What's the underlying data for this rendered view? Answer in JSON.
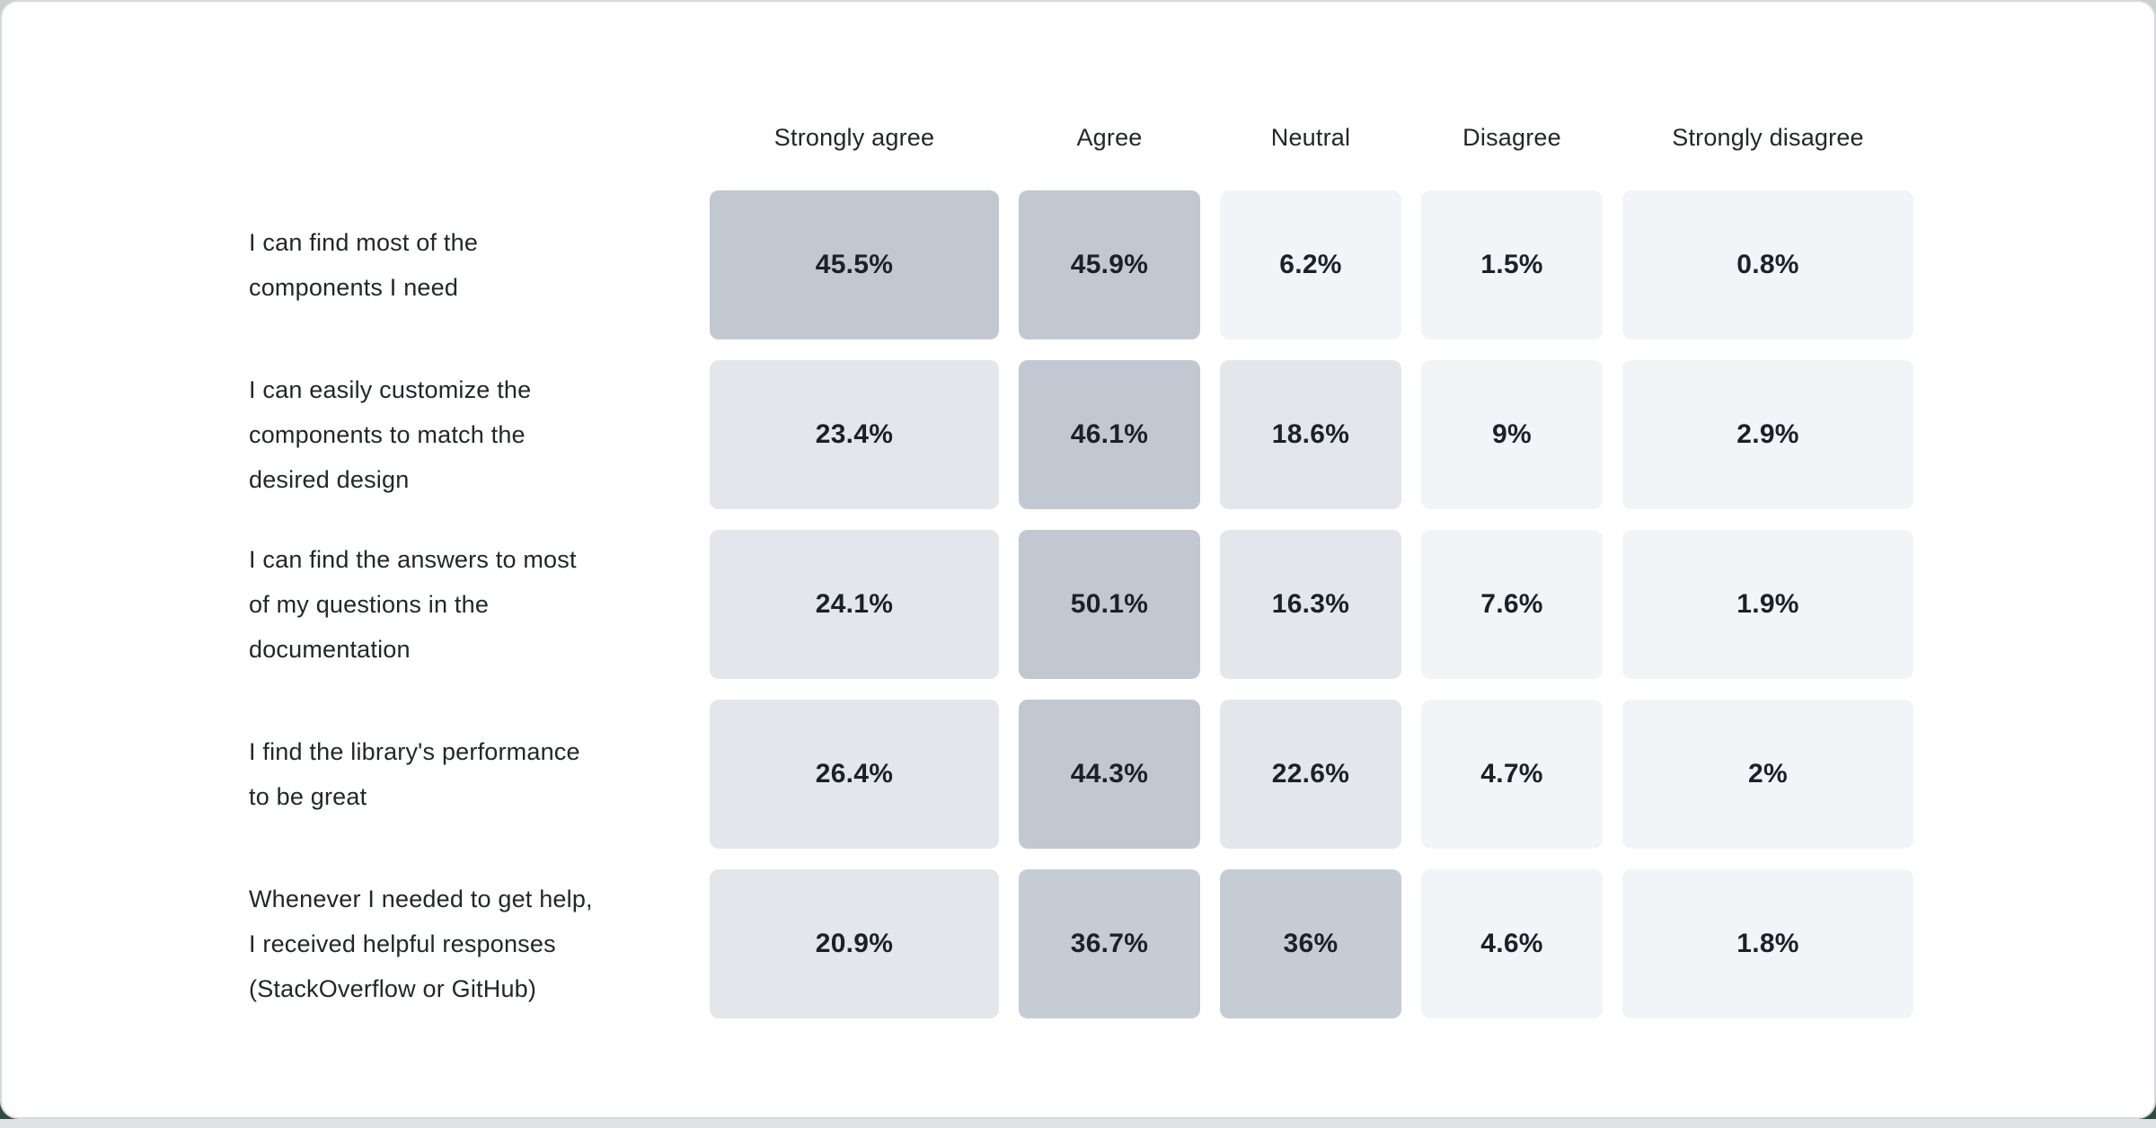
{
  "colors": {
    "card_bg": "#ffffff",
    "card_border": "#d5dade",
    "bottom_strip": "#dfe3e6",
    "backdrop_green": "#2d4a3b",
    "header_text": "#21272a",
    "label_text": "#21272a",
    "cell_text": "#1b2129",
    "scale": {
      "high": "#c1c8d1",
      "mid": "#c5ccd4",
      "low": "#e3e7eb",
      "minimal": "#f2f5f8"
    }
  },
  "chart_data": {
    "type": "heatmap",
    "title": "",
    "columns": [
      "Strongly agree",
      "Agree",
      "Neutral",
      "Disagree",
      "Strongly disagree"
    ],
    "rows": [
      {
        "label": "I can find most of the\ncomponents I need",
        "values": [
          "45.5%",
          "45.9%",
          "6.2%",
          "1.5%",
          "0.8%"
        ],
        "numeric": [
          45.5,
          45.9,
          6.2,
          1.5,
          0.8
        ]
      },
      {
        "label": "I can easily customize the\ncomponents to match the\ndesired design",
        "values": [
          "23.4%",
          "46.1%",
          "18.6%",
          "9%",
          "2.9%"
        ],
        "numeric": [
          23.4,
          46.1,
          18.6,
          9,
          2.9
        ]
      },
      {
        "label": "I can find the answers to most\nof my questions in the\ndocumentation",
        "values": [
          "24.1%",
          "50.1%",
          "16.3%",
          "7.6%",
          "1.9%"
        ],
        "numeric": [
          24.1,
          50.1,
          16.3,
          7.6,
          1.9
        ]
      },
      {
        "label": "I find the library's performance\nto be great",
        "values": [
          "26.4%",
          "44.3%",
          "22.6%",
          "4.7%",
          "2%"
        ],
        "numeric": [
          26.4,
          44.3,
          22.6,
          4.7,
          2
        ]
      },
      {
        "label": "Whenever I needed to get help,\nI received helpful responses\n(StackOverflow or GitHub)",
        "values": [
          "20.9%",
          "36.7%",
          "36%",
          "4.6%",
          "1.8%"
        ],
        "numeric": [
          20.9,
          36.7,
          36,
          4.6,
          1.8
        ]
      }
    ]
  }
}
